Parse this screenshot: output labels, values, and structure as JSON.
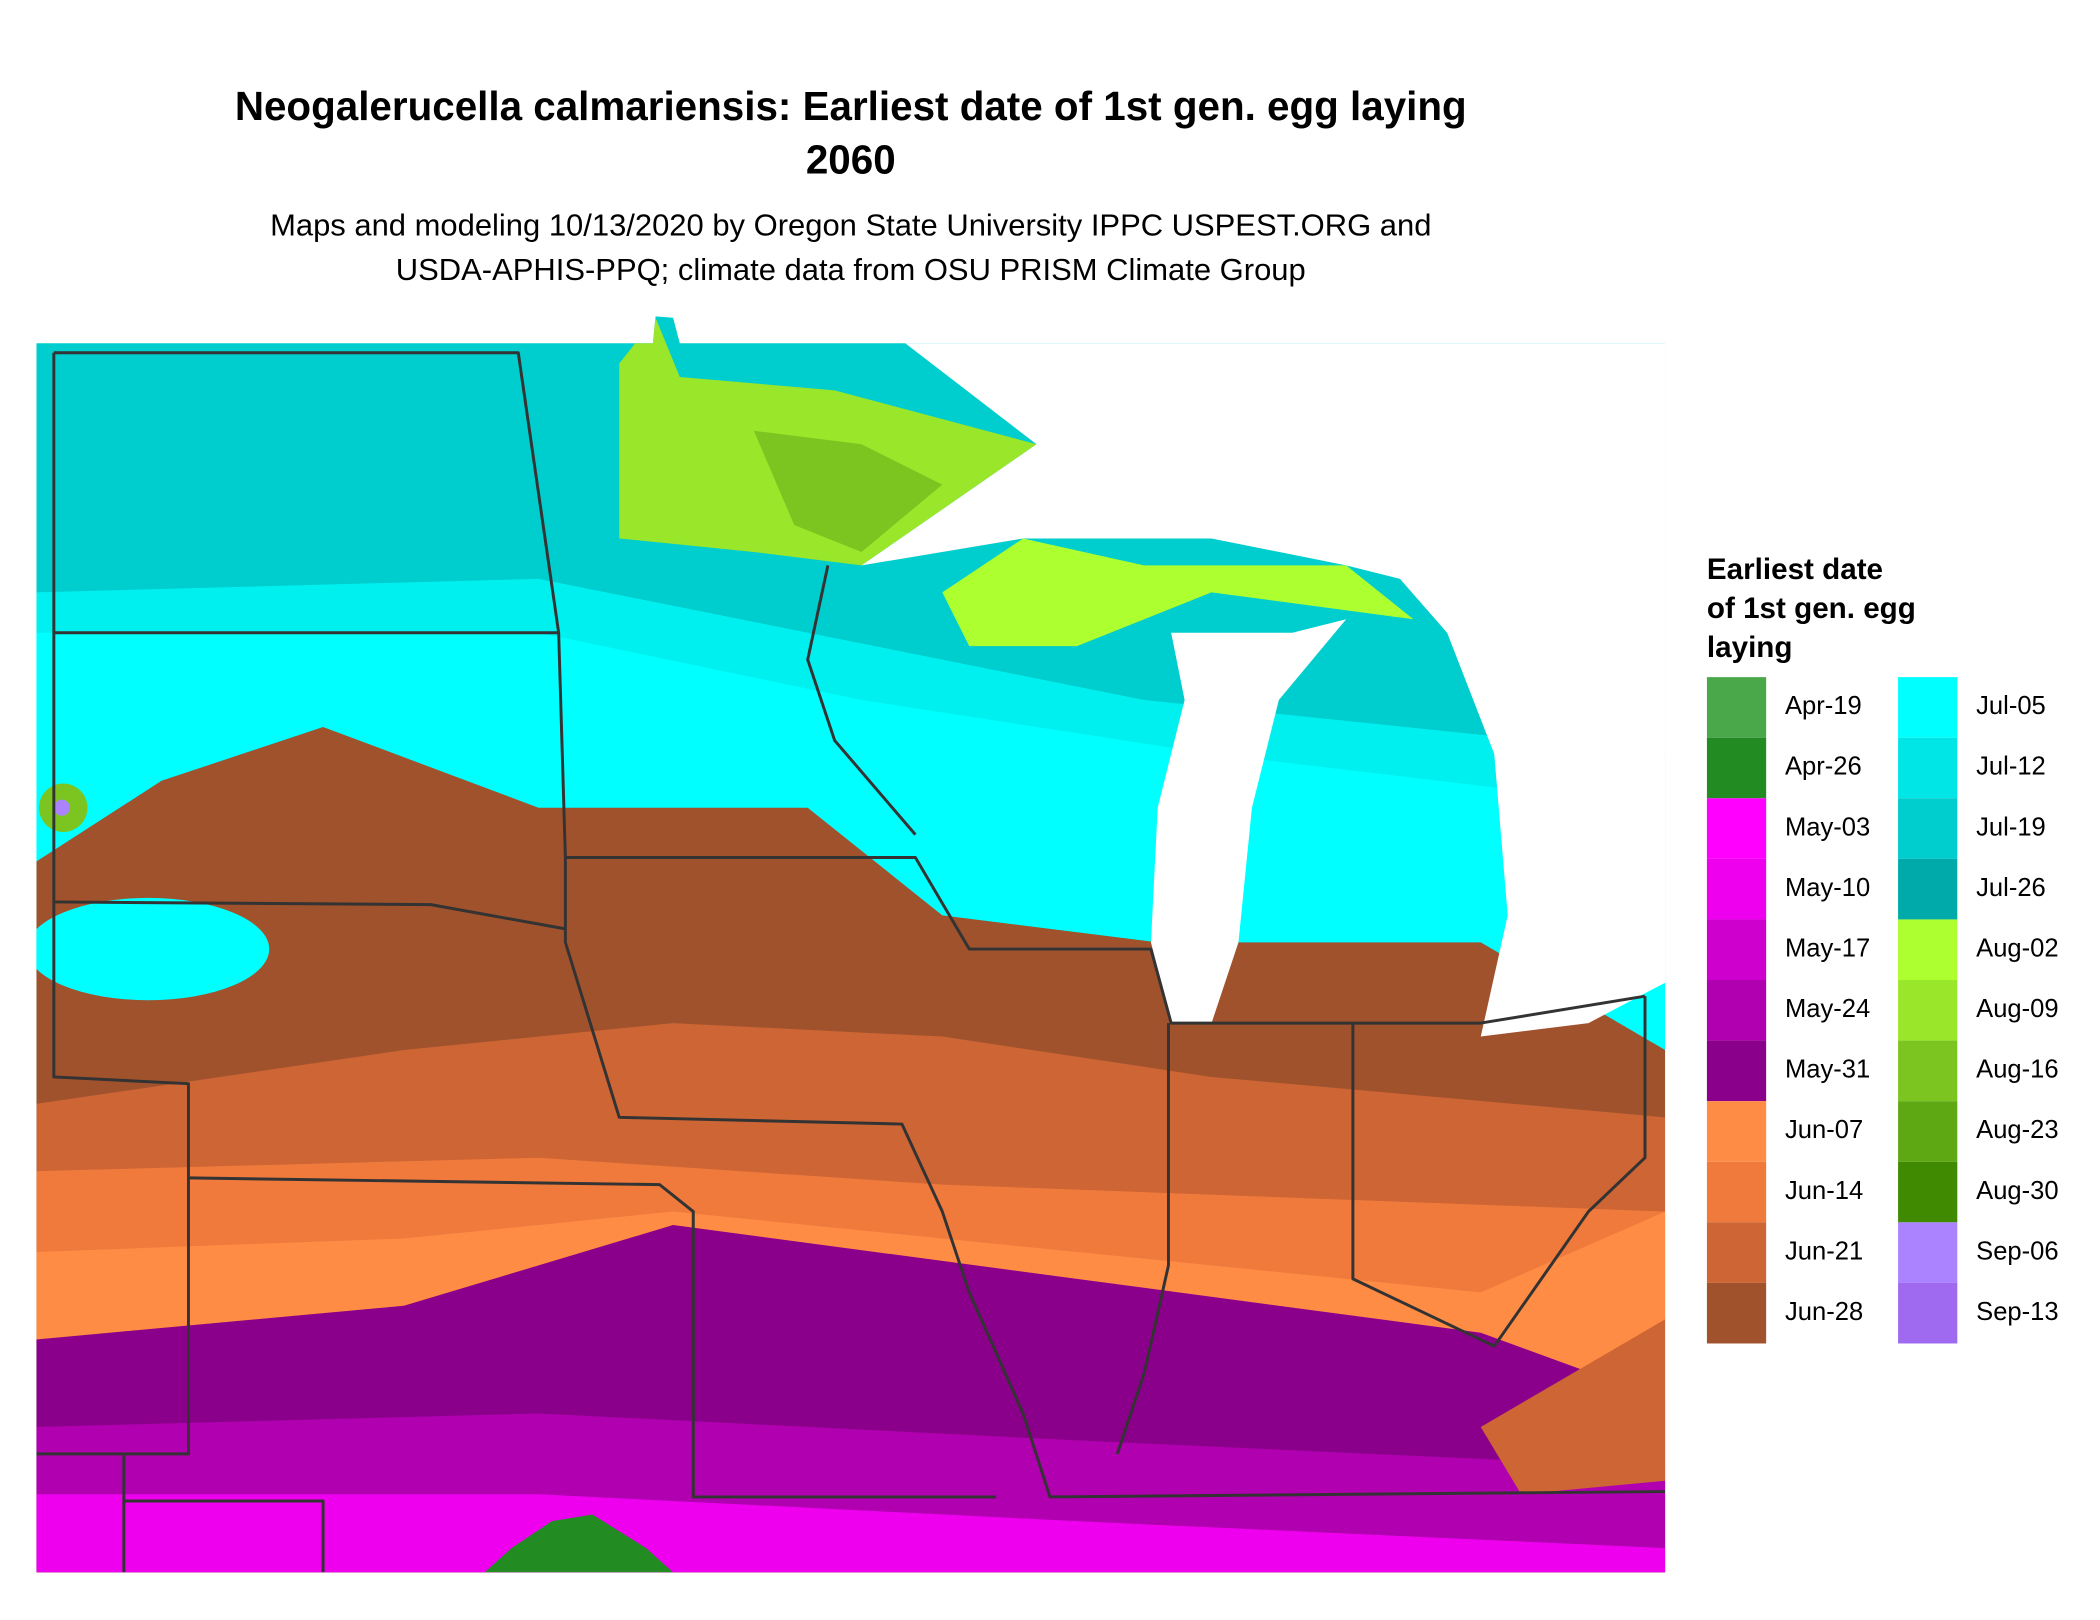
{
  "title": [
    "Neogalerucella calmariensis: Earliest date of 1st gen. egg laying",
    "2060"
  ],
  "subtitle": [
    "Maps and modeling 10/13/2020 by Oregon State University IPPC USPEST.ORG and",
    "USDA-APHIS-PPQ; climate data from OSU PRISM Climate Group"
  ],
  "legend": {
    "title": [
      "Earliest date",
      "of 1st gen. egg",
      "laying"
    ],
    "entries": [
      {
        "label": "Apr-19",
        "color": "#4aa84a"
      },
      {
        "label": "Apr-26",
        "color": "#228b22"
      },
      {
        "label": "May-03",
        "color": "#ff00ff"
      },
      {
        "label": "May-10",
        "color": "#ee00ee"
      },
      {
        "label": "May-17",
        "color": "#cd00cd"
      },
      {
        "label": "May-24",
        "color": "#b000b0"
      },
      {
        "label": "May-31",
        "color": "#8b008b"
      },
      {
        "label": "Jun-07",
        "color": "#ff8c45"
      },
      {
        "label": "Jun-14",
        "color": "#f07a3c"
      },
      {
        "label": "Jun-21",
        "color": "#cd6535"
      },
      {
        "label": "Jun-28",
        "color": "#a0522d"
      },
      {
        "label": "Jul-05",
        "color": "#00ffff"
      },
      {
        "label": "Jul-12",
        "color": "#00e5e5"
      },
      {
        "label": "Jul-19",
        "color": "#00cdcd"
      },
      {
        "label": "Jul-26",
        "color": "#00aaaa"
      },
      {
        "label": "Aug-02",
        "color": "#adff2f"
      },
      {
        "label": "Aug-09",
        "color": "#9ae62a"
      },
      {
        "label": "Aug-16",
        "color": "#7cc520"
      },
      {
        "label": "Aug-23",
        "color": "#5ea814"
      },
      {
        "label": "Aug-30",
        "color": "#3f8a00"
      },
      {
        "label": "Sep-06",
        "color": "#ab82ff"
      },
      {
        "label": "Sep-13",
        "color": "#9f6af0"
      }
    ]
  }
}
